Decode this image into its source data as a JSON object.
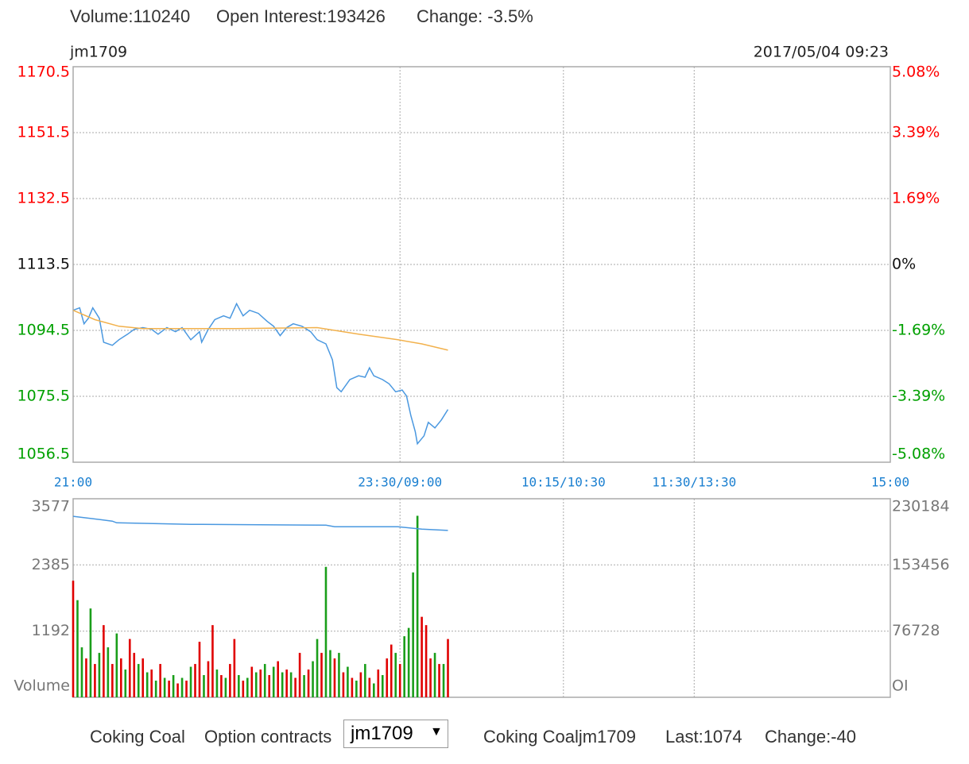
{
  "header": {
    "volume": "Volume:110240",
    "open_interest": "Open Interest:193426",
    "change": "Change: -3.5%"
  },
  "chart_data": [
    {
      "type": "line",
      "title": "jm1709",
      "subtitle": "2017/05/04 09:23",
      "xlim": [
        0,
        375
      ],
      "xticks": [
        {
          "value": 0,
          "label": "21:00"
        },
        {
          "value": 150,
          "label": "23:30/09:00"
        },
        {
          "value": 225,
          "label": "10:15/10:30"
        },
        {
          "value": 285,
          "label": "11:30/13:30"
        },
        {
          "value": 375,
          "label": "15:00"
        }
      ],
      "ylim": [
        1056.5,
        1170.5
      ],
      "yticks": [
        1170.5,
        1151.5,
        1132.5,
        1113.5,
        1094.5,
        1075.5,
        1056.5
      ],
      "y2lim": [
        -5.08,
        5.08
      ],
      "y2ticks": [
        {
          "value": 5.08,
          "label": "5.08%"
        },
        {
          "value": 3.39,
          "label": "3.39%"
        },
        {
          "value": 1.69,
          "label": "1.69%"
        },
        {
          "value": 0,
          "label": "0%"
        },
        {
          "value": -1.69,
          "label": "-1.69%"
        },
        {
          "value": -3.39,
          "label": "-3.39%"
        },
        {
          "value": -5.08,
          "label": "-5.08%"
        }
      ],
      "grid": true,
      "up_color": "#ff0000",
      "down_color": "#00a000",
      "series": [
        {
          "color": "#4a98e0",
          "x": [
            0,
            3,
            5,
            7,
            9,
            12,
            14,
            18,
            21,
            25,
            28,
            32,
            36,
            39,
            43,
            47,
            50,
            54,
            58,
            59,
            62,
            65,
            69,
            72,
            75,
            78,
            81,
            85,
            89,
            92,
            95,
            98,
            101,
            105,
            109,
            112,
            116,
            119,
            121,
            123,
            127,
            131,
            134,
            136,
            138,
            142,
            145,
            148,
            151,
            153,
            155,
            157,
            158,
            161,
            163,
            166,
            169,
            172
          ],
          "values": [
            1100.3,
            1101.0,
            1096.4,
            1098.0,
            1101.0,
            1098.0,
            1091.1,
            1090.2,
            1091.8,
            1093.4,
            1094.8,
            1095.3,
            1094.8,
            1093.4,
            1095.3,
            1094.1,
            1095.3,
            1091.8,
            1094.1,
            1091.1,
            1094.8,
            1097.6,
            1098.7,
            1098.0,
            1102.2,
            1098.7,
            1100.3,
            1099.4,
            1097.1,
            1095.7,
            1093.0,
            1095.3,
            1096.4,
            1095.7,
            1094.1,
            1091.8,
            1090.6,
            1086.0,
            1078.0,
            1076.8,
            1080.3,
            1081.4,
            1081.0,
            1083.7,
            1081.4,
            1080.3,
            1079.1,
            1076.8,
            1077.3,
            1075.6,
            1069.9,
            1065.3,
            1061.8,
            1064.1,
            1068.0,
            1066.4,
            1068.7,
            1071.7
          ]
        },
        {
          "color": "#f2b14c",
          "x": [
            0,
            10,
            21,
            32,
            75,
            112,
            131,
            149,
            160,
            172
          ],
          "values": [
            1100.3,
            1097.6,
            1095.7,
            1095.0,
            1095.0,
            1095.3,
            1093.4,
            1091.8,
            1090.6,
            1088.8
          ]
        }
      ]
    },
    {
      "type": "bar",
      "ylabel": "Volume",
      "y2label": "OI",
      "xlim": [
        0,
        375
      ],
      "ylim": [
        0,
        3577
      ],
      "yticks": [
        1192,
        2385,
        3577
      ],
      "y2lim": [
        0,
        230184
      ],
      "y2ticks": [
        76728,
        153456,
        230184
      ],
      "grid": true,
      "series": [
        {
          "type": "bar",
          "x": [
            0,
            2,
            4,
            6,
            8,
            10,
            12,
            14,
            16,
            18,
            20,
            22,
            24,
            26,
            28,
            30,
            32,
            34,
            36,
            38,
            40,
            42,
            44,
            46,
            48,
            50,
            52,
            54,
            56,
            58,
            60,
            62,
            64,
            66,
            68,
            70,
            72,
            74,
            76,
            78,
            80,
            82,
            84,
            86,
            88,
            90,
            92,
            94,
            96,
            98,
            100,
            102,
            104,
            106,
            108,
            110,
            112,
            114,
            116,
            118,
            120,
            122,
            124,
            126,
            128,
            130,
            132,
            134,
            136,
            138,
            140,
            142,
            144,
            146,
            148,
            150,
            152,
            154,
            156,
            158,
            160,
            162,
            164,
            166,
            168,
            170,
            172
          ],
          "values": [
            2100,
            1750,
            900,
            700,
            1600,
            600,
            800,
            1300,
            900,
            600,
            1150,
            700,
            500,
            1050,
            800,
            600,
            700,
            450,
            500,
            300,
            600,
            350,
            300,
            400,
            250,
            350,
            300,
            550,
            600,
            1000,
            400,
            650,
            1300,
            500,
            400,
            350,
            600,
            1050,
            400,
            300,
            350,
            550,
            450,
            500,
            600,
            400,
            550,
            650,
            450,
            500,
            450,
            350,
            800,
            400,
            500,
            650,
            1050,
            800,
            2350,
            850,
            700,
            800,
            450,
            550,
            350,
            300,
            450,
            600,
            350,
            250,
            500,
            400,
            700,
            950,
            800,
            600,
            1100,
            1250,
            2250,
            3270,
            1450,
            1300,
            700,
            800,
            600,
            600,
            1050
          ],
          "colors": [
            "#e00000",
            "#1a9e1a",
            "#1a9e1a",
            "#e00000",
            "#1a9e1a",
            "#e00000",
            "#1a9e1a",
            "#e00000",
            "#1a9e1a",
            "#e00000",
            "#1a9e1a",
            "#e00000",
            "#1a9e1a",
            "#e00000",
            "#e00000",
            "#1a9e1a",
            "#e00000",
            "#1a9e1a",
            "#e00000",
            "#1a9e1a",
            "#e00000",
            "#1a9e1a",
            "#e00000",
            "#1a9e1a",
            "#e00000",
            "#1a9e1a",
            "#e00000",
            "#1a9e1a",
            "#e00000",
            "#e00000",
            "#1a9e1a",
            "#e00000",
            "#e00000",
            "#1a9e1a",
            "#e00000",
            "#1a9e1a",
            "#e00000",
            "#e00000",
            "#1a9e1a",
            "#e00000",
            "#1a9e1a",
            "#e00000",
            "#1a9e1a",
            "#e00000",
            "#1a9e1a",
            "#e00000",
            "#1a9e1a",
            "#e00000",
            "#1a9e1a",
            "#e00000",
            "#1a9e1a",
            "#e00000",
            "#e00000",
            "#1a9e1a",
            "#e00000",
            "#1a9e1a",
            "#1a9e1a",
            "#e00000",
            "#1a9e1a",
            "#1a9e1a",
            "#e00000",
            "#1a9e1a",
            "#e00000",
            "#1a9e1a",
            "#e00000",
            "#1a9e1a",
            "#e00000",
            "#1a9e1a",
            "#e00000",
            "#1a9e1a",
            "#e00000",
            "#1a9e1a",
            "#e00000",
            "#e00000",
            "#1a9e1a",
            "#e00000",
            "#1a9e1a",
            "#1a9e1a",
            "#1a9e1a",
            "#1a9e1a",
            "#e00000",
            "#e00000",
            "#e00000",
            "#1a9e1a",
            "#e00000",
            "#1a9e1a",
            "#e00000"
          ]
        },
        {
          "type": "line",
          "axis": "y2",
          "color": "#4a98e0",
          "x": [
            0,
            18,
            20,
            54,
            116,
            120,
            149,
            160,
            172
          ],
          "values": [
            209800,
            204200,
            202300,
            200500,
            199500,
            197700,
            197700,
            194900,
            193426
          ]
        }
      ]
    }
  ],
  "footer": {
    "product": "Coking Coal",
    "options_label": "Option contracts",
    "selected": "jm1709",
    "quote_name": "Coking Coaljm1709",
    "last": "Last:1074",
    "change": "Change:-40"
  }
}
